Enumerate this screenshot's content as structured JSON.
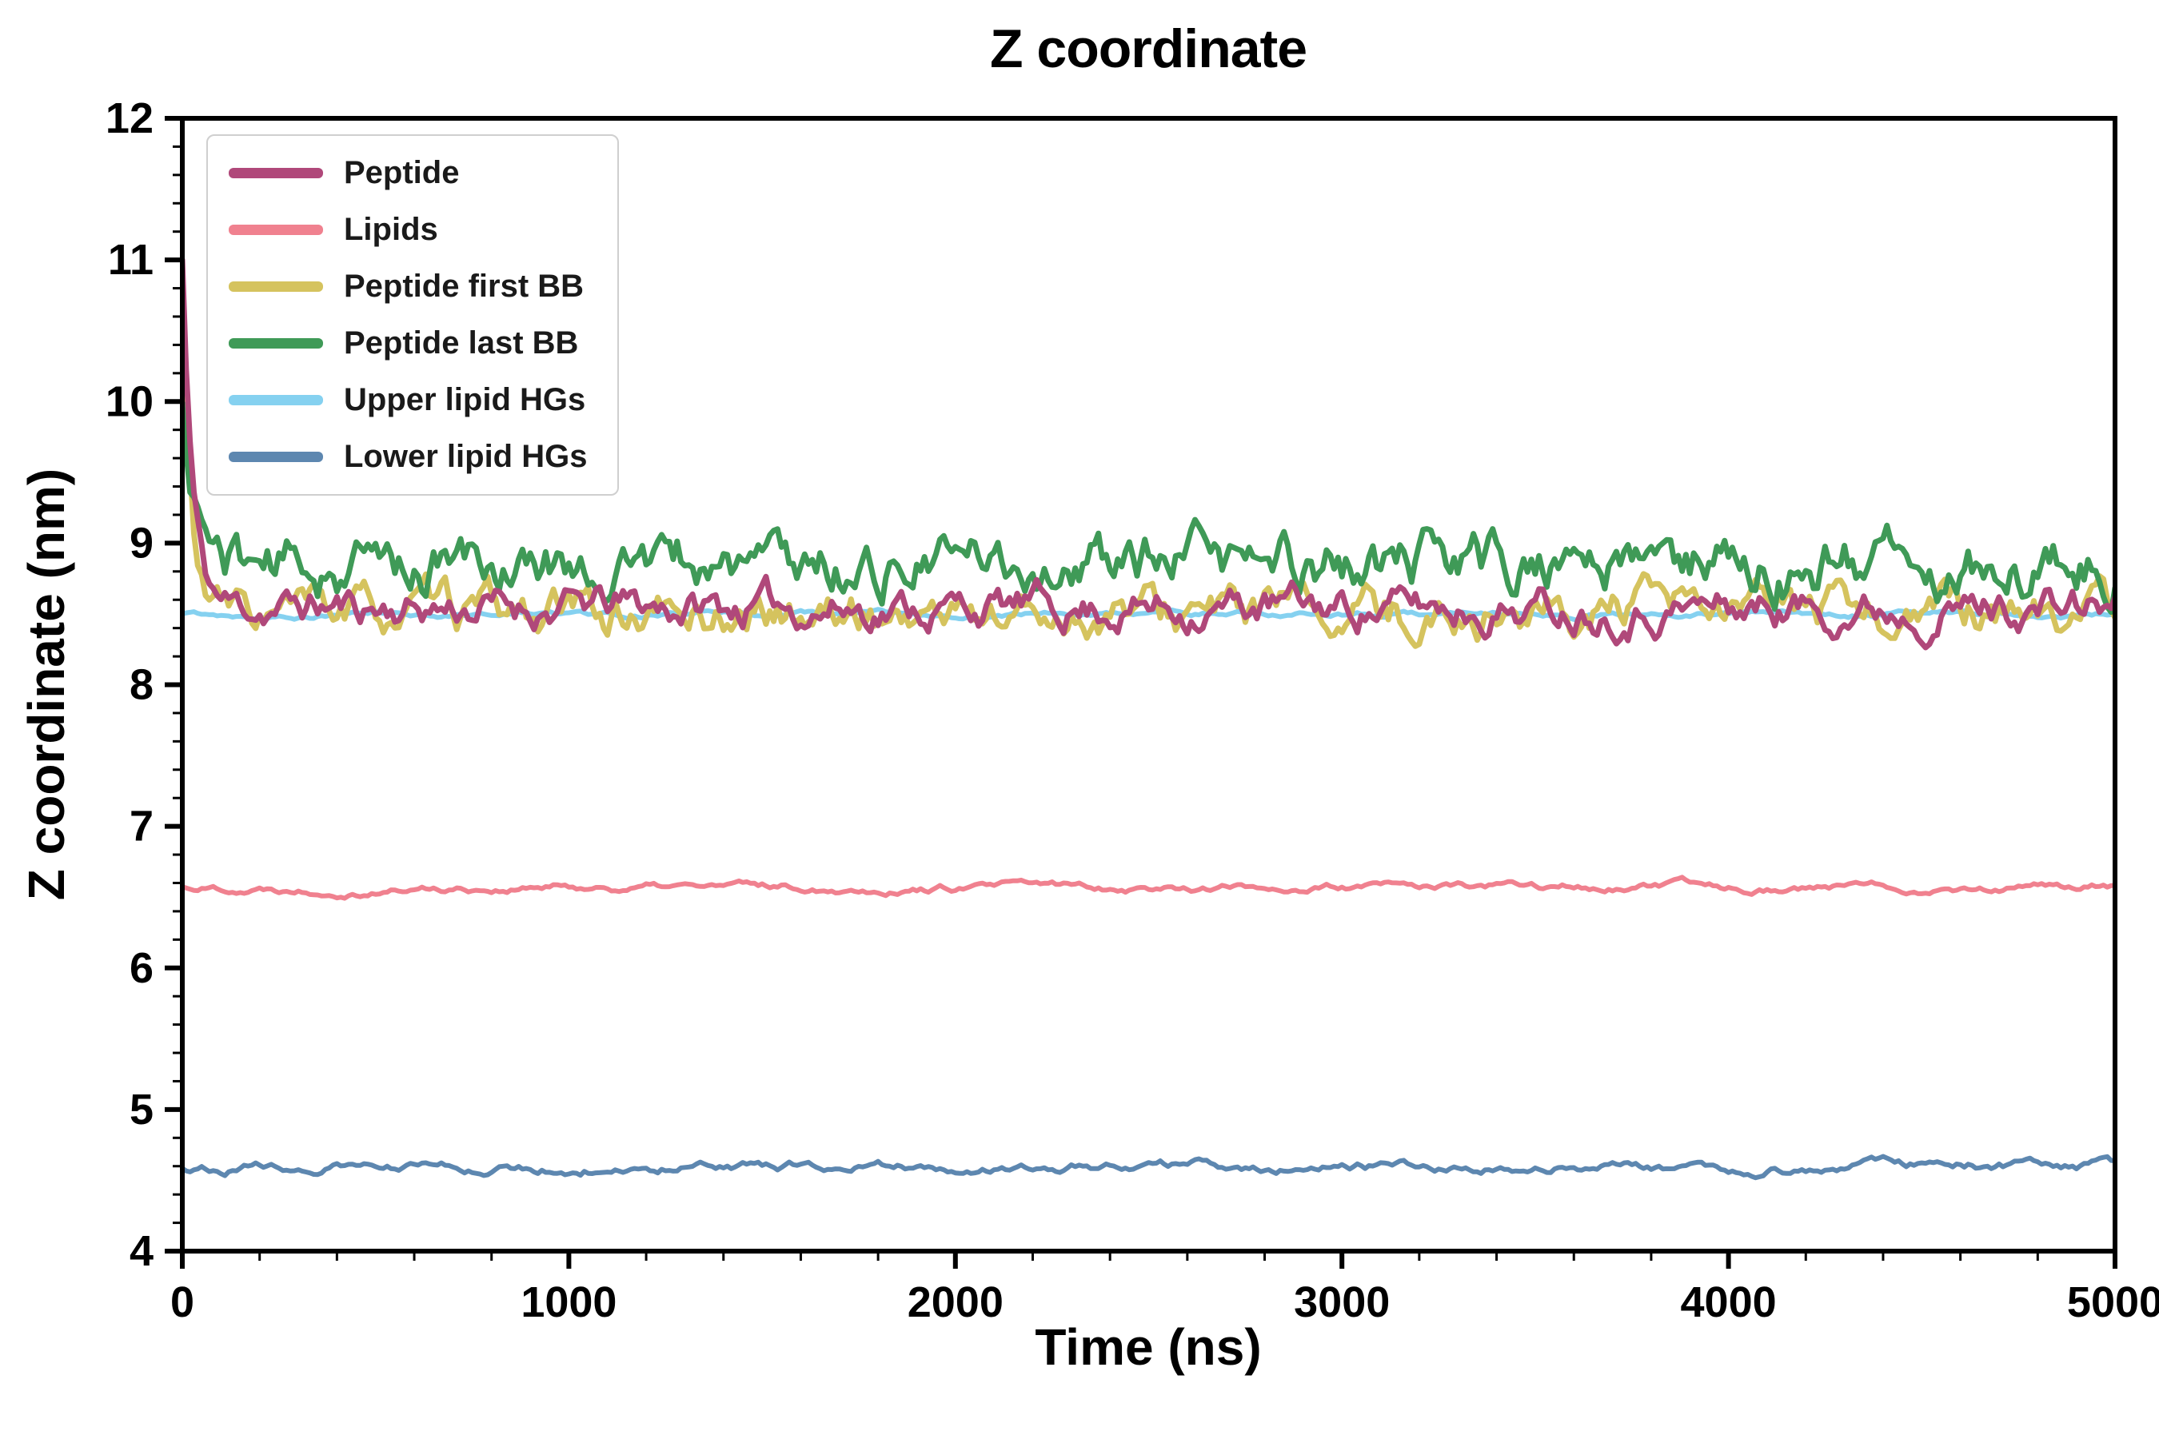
{
  "chart_data": {
    "type": "line",
    "title": "Z coordinate",
    "xlabel": "Time (ns)",
    "ylabel": "Z coordinate (nm)",
    "xlim": [
      0,
      5000
    ],
    "ylim": [
      4,
      12
    ],
    "x_major_ticks": [
      0,
      1000,
      2000,
      3000,
      4000,
      5000
    ],
    "y_major_ticks": [
      4,
      5,
      6,
      7,
      8,
      9,
      10,
      11,
      12
    ],
    "x_minor_step": 200,
    "y_minor_step": 0.2,
    "grid": false,
    "legend_position": "upper left",
    "background": "#ffffff",
    "axis_color": "#000000",
    "sample_dt_ns": 10,
    "series": [
      {
        "name": "Peptide",
        "color": "#b0487a",
        "mean": 8.55,
        "start": 11.0,
        "tau": 26,
        "noise_std": 0.09,
        "alpha": 0.8,
        "seed": 11,
        "linewidth": 7
      },
      {
        "name": "Lipids",
        "color": "#f0818f",
        "mean": 6.57,
        "noise_std": 0.022,
        "alpha": 0.9,
        "seed": 22,
        "linewidth": 6
      },
      {
        "name": "Peptide first BB",
        "color": "#d5c35e",
        "mean": 8.5,
        "start": 10.9,
        "tau": 22,
        "noise_std": 0.105,
        "alpha": 0.8,
        "seed": 33,
        "linewidth": 7
      },
      {
        "name": "Peptide last BB",
        "color": "#3f9a57",
        "mean": 8.85,
        "start": 9.9,
        "tau": 40,
        "noise_std": 0.13,
        "alpha": 0.8,
        "seed": 44,
        "linewidth": 7
      },
      {
        "name": "Upper lipid HGs",
        "color": "#85d1f0",
        "mean": 8.5,
        "noise_std": 0.015,
        "alpha": 0.9,
        "seed": 55,
        "linewidth": 6
      },
      {
        "name": "Lower lipid HGs",
        "color": "#5d87b0",
        "mean": 4.6,
        "noise_std": 0.025,
        "alpha": 0.88,
        "seed": 66,
        "linewidth": 6
      }
    ],
    "draw_order": [
      4,
      2,
      3,
      0,
      1,
      5
    ]
  }
}
